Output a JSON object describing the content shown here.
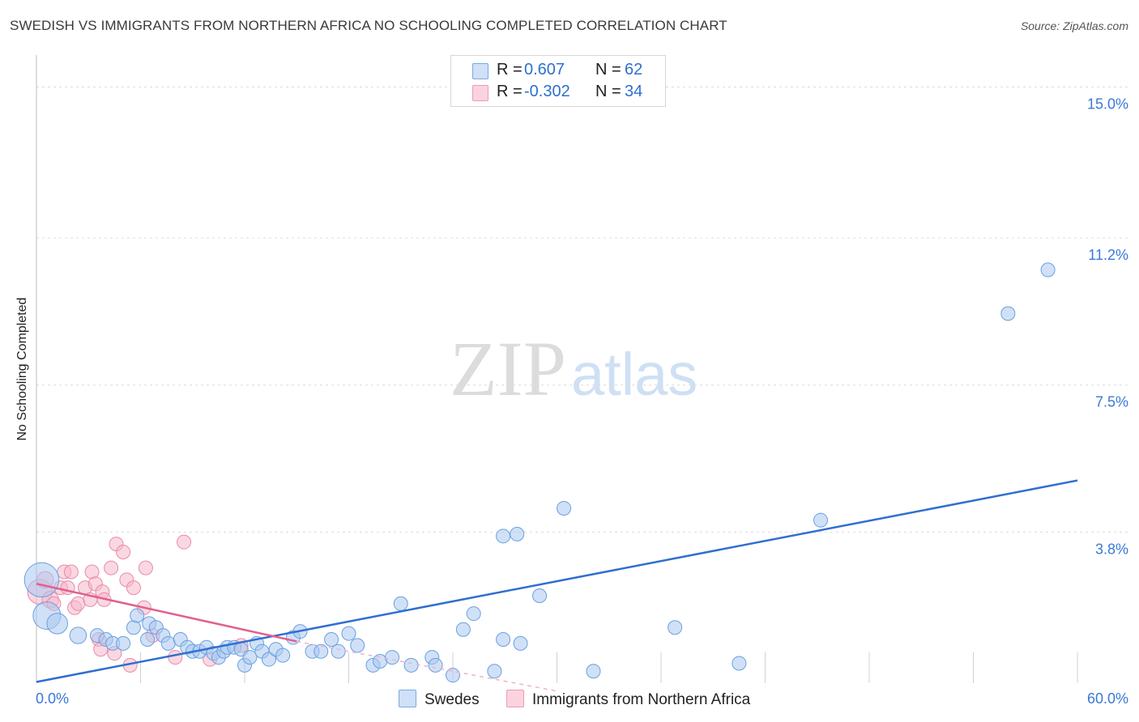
{
  "title": "SWEDISH VS IMMIGRANTS FROM NORTHERN AFRICA NO SCHOOLING COMPLETED CORRELATION CHART",
  "source": "Source: ZipAtlas.com",
  "watermark": {
    "zip": "ZIP",
    "atlas": "atlas"
  },
  "legend": {
    "rows": [
      {
        "r_label": "R =",
        "r_value": "0.607",
        "n_label": "N =",
        "n_value": "62",
        "color": "#a9c8f0"
      },
      {
        "r_label": "R =",
        "r_value": "-0.302",
        "n_label": "N =",
        "n_value": "34",
        "color": "#f6b8cb"
      }
    ]
  },
  "bottom_legend": {
    "series1": "Swedes",
    "series2": "Immigrants from Northern Africa"
  },
  "chart_data": {
    "type": "scatter",
    "title": "SWEDISH VS IMMIGRANTS FROM NORTHERN AFRICA NO SCHOOLING COMPLETED CORRELATION CHART",
    "xlabel": "",
    "ylabel": "No Schooling Completed",
    "xlim": [
      0,
      60
    ],
    "ylim": [
      0,
      15.6
    ],
    "x_tick_labels": [
      "0.0%",
      "60.0%"
    ],
    "y_ticks": [
      3.8,
      7.5,
      11.2,
      15.0
    ],
    "y_tick_labels": [
      "3.8%",
      "7.5%",
      "11.2%",
      "15.0%"
    ],
    "grid": "dashed horizontal",
    "series": [
      {
        "name": "Swedes",
        "color": "#a9c8f0",
        "stroke": "#6a9fe0",
        "trend_color": "#2f6fd0",
        "trend": {
          "x": [
            0,
            60
          ],
          "y": [
            0.03,
            5.1
          ]
        },
        "points": [
          [
            0.3,
            2.6,
            2.5
          ],
          [
            0.6,
            1.7,
            2
          ],
          [
            1.2,
            1.5,
            1.5
          ],
          [
            2.4,
            1.2,
            1.2
          ],
          [
            3.5,
            1.2,
            1
          ],
          [
            4.0,
            1.1,
            1
          ],
          [
            4.4,
            1.0,
            1
          ],
          [
            5.0,
            1.0,
            1
          ],
          [
            5.6,
            1.4,
            1
          ],
          [
            5.8,
            1.7,
            1
          ],
          [
            6.4,
            1.1,
            1
          ],
          [
            6.5,
            1.5,
            1
          ],
          [
            6.9,
            1.4,
            1
          ],
          [
            7.3,
            1.2,
            1
          ],
          [
            7.6,
            1.0,
            1
          ],
          [
            8.3,
            1.1,
            1
          ],
          [
            8.7,
            0.9,
            1
          ],
          [
            9.0,
            0.8,
            1
          ],
          [
            9.4,
            0.8,
            1
          ],
          [
            9.8,
            0.9,
            1
          ],
          [
            10.2,
            0.75,
            1
          ],
          [
            10.5,
            0.65,
            1
          ],
          [
            10.8,
            0.8,
            1
          ],
          [
            11.0,
            0.9,
            1
          ],
          [
            11.4,
            0.9,
            1
          ],
          [
            11.8,
            0.85,
            1
          ],
          [
            12.0,
            0.45,
            1
          ],
          [
            12.3,
            0.65,
            1
          ],
          [
            12.7,
            1.0,
            1
          ],
          [
            13.0,
            0.8,
            1
          ],
          [
            13.4,
            0.6,
            1
          ],
          [
            13.8,
            0.85,
            1
          ],
          [
            14.2,
            0.7,
            1
          ],
          [
            14.8,
            1.15,
            1
          ],
          [
            15.2,
            1.3,
            1
          ],
          [
            15.9,
            0.8,
            1
          ],
          [
            16.4,
            0.8,
            1
          ],
          [
            17.0,
            1.1,
            1
          ],
          [
            17.4,
            0.8,
            1
          ],
          [
            18.0,
            1.25,
            1
          ],
          [
            18.5,
            0.95,
            1
          ],
          [
            19.4,
            0.45,
            1
          ],
          [
            19.8,
            0.55,
            1
          ],
          [
            20.5,
            0.65,
            1
          ],
          [
            21.0,
            2.0,
            1
          ],
          [
            21.6,
            0.45,
            1
          ],
          [
            22.8,
            0.65,
            1
          ],
          [
            23.0,
            0.45,
            1
          ],
          [
            24.0,
            0.2,
            1
          ],
          [
            24.6,
            1.35,
            1
          ],
          [
            25.2,
            1.75,
            1
          ],
          [
            26.4,
            0.3,
            1
          ],
          [
            26.9,
            1.1,
            1
          ],
          [
            26.9,
            3.7,
            1
          ],
          [
            27.7,
            3.75,
            1
          ],
          [
            27.9,
            1.0,
            1
          ],
          [
            29.0,
            2.2,
            1
          ],
          [
            30.4,
            4.4,
            1
          ],
          [
            32.1,
            0.3,
            1
          ],
          [
            36.8,
            1.4,
            1
          ],
          [
            40.5,
            0.5,
            1
          ],
          [
            45.2,
            4.1,
            1
          ],
          [
            56.0,
            9.3,
            1
          ],
          [
            58.3,
            10.4,
            1
          ]
        ]
      },
      {
        "name": "Immigrants from Northern Africa",
        "color": "#f6b8cb",
        "stroke": "#e98aa8",
        "trend_color": "#e0608f",
        "trend": {
          "x": [
            0,
            15
          ],
          "y": [
            2.5,
            1.05
          ]
        },
        "trend_extension": {
          "x": [
            15,
            30
          ],
          "y": [
            1.05,
            -0.2
          ]
        },
        "points": [
          [
            0.2,
            2.3,
            1.8
          ],
          [
            0.5,
            2.6,
            1.2
          ],
          [
            0.8,
            2.1,
            1.2
          ],
          [
            1.0,
            2.0,
            1
          ],
          [
            1.4,
            2.4,
            1
          ],
          [
            1.6,
            2.8,
            1
          ],
          [
            1.8,
            2.4,
            1
          ],
          [
            2.0,
            2.8,
            1
          ],
          [
            2.2,
            1.9,
            1
          ],
          [
            2.4,
            2.0,
            1
          ],
          [
            2.8,
            2.4,
            1
          ],
          [
            3.1,
            2.1,
            1
          ],
          [
            3.2,
            2.8,
            1
          ],
          [
            3.4,
            2.5,
            1
          ],
          [
            3.6,
            1.1,
            1
          ],
          [
            3.8,
            2.3,
            1
          ],
          [
            3.7,
            0.85,
            1
          ],
          [
            3.9,
            2.1,
            1
          ],
          [
            4.3,
            2.9,
            1
          ],
          [
            4.5,
            0.75,
            1
          ],
          [
            4.6,
            3.5,
            1
          ],
          [
            5.0,
            3.3,
            1
          ],
          [
            5.2,
            2.6,
            1
          ],
          [
            5.4,
            0.45,
            1
          ],
          [
            5.6,
            2.4,
            1
          ],
          [
            6.2,
            1.9,
            1
          ],
          [
            6.3,
            2.9,
            1
          ],
          [
            6.7,
            1.2,
            1
          ],
          [
            8.0,
            0.65,
            1
          ],
          [
            8.5,
            3.55,
            1
          ],
          [
            10.0,
            0.6,
            1
          ],
          [
            11.8,
            0.95,
            1
          ]
        ]
      }
    ]
  }
}
